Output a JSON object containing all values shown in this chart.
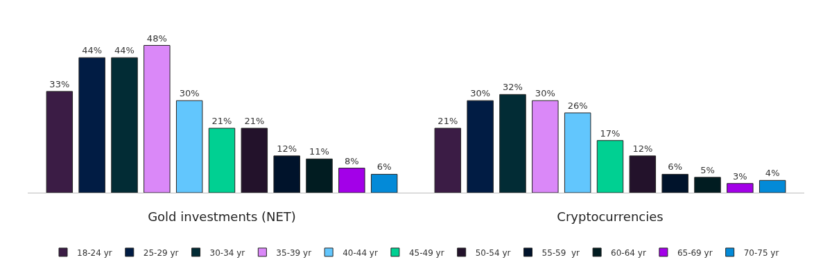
{
  "chart_data": {
    "type": "bar",
    "categories": [
      "Gold investments (NET)",
      "Cryptocurrencies"
    ],
    "legend": "bottom",
    "series": [
      {
        "name": "18-24 yr",
        "color": "#3b1c45",
        "values": [
          33,
          21
        ],
        "value_labels": [
          "33%",
          "21%"
        ]
      },
      {
        "name": "25-29 yr",
        "color": "#011c44",
        "values": [
          44,
          30
        ],
        "value_labels": [
          "44%",
          "30%"
        ]
      },
      {
        "name": "30-34 yr",
        "color": "#022c35",
        "values": [
          44,
          32
        ],
        "value_labels": [
          "44%",
          "32%"
        ]
      },
      {
        "name": "35-39 yr",
        "color": "#da88f8",
        "values": [
          48,
          30
        ],
        "value_labels": [
          "48%",
          "30%"
        ]
      },
      {
        "name": "40-44 yr",
        "color": "#62c6fd",
        "values": [
          30,
          26
        ],
        "value_labels": [
          "30%",
          "26%"
        ]
      },
      {
        "name": "45-49 yr",
        "color": "#00d092",
        "values": [
          21,
          17
        ],
        "value_labels": [
          "21%",
          "17%"
        ]
      },
      {
        "name": "50-54 yr",
        "color": "#23122b",
        "values": [
          21,
          12
        ],
        "value_labels": [
          "21%",
          "12%"
        ]
      },
      {
        "name": "55-59  yr",
        "color": "#00132b",
        "values": [
          12,
          6
        ],
        "value_labels": [
          "12%",
          "6%"
        ]
      },
      {
        "name": "60-64 yr",
        "color": "#011c21",
        "values": [
          11,
          5
        ],
        "value_labels": [
          "11%",
          "5%"
        ]
      },
      {
        "name": "65-69 yr",
        "color": "#a300e8",
        "values": [
          8,
          3
        ],
        "value_labels": [
          "8%",
          "3%"
        ]
      },
      {
        "name": "70-75 yr",
        "color": "#038ad8",
        "values": [
          6,
          4
        ],
        "value_labels": [
          "6%",
          "4%"
        ]
      }
    ]
  }
}
